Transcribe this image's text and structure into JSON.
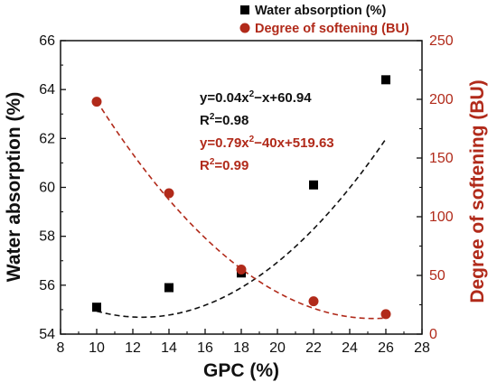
{
  "chart_data": {
    "type": "scatter",
    "x": [
      10,
      14,
      18,
      22,
      26
    ],
    "xlabel": "GPC (%)",
    "xlim": [
      8,
      28
    ],
    "xticks": [
      8,
      10,
      12,
      14,
      16,
      18,
      20,
      22,
      24,
      26,
      28
    ],
    "y_left": {
      "label": "Water absorption (%)",
      "lim": [
        54,
        66
      ],
      "ticks": [
        54,
        56,
        58,
        60,
        62,
        64,
        66
      ]
    },
    "y_right": {
      "label": "Degree of softening (BU)",
      "lim": [
        0,
        250
      ],
      "ticks": [
        0,
        50,
        100,
        150,
        200,
        250
      ]
    },
    "series": [
      {
        "name": "Water absorption (%)",
        "axis": "left",
        "marker": "square",
        "color": "#000000",
        "values": [
          55.1,
          55.9,
          56.5,
          60.1,
          64.4
        ],
        "fit": {
          "a": 0.04,
          "b": -1,
          "c": 60.94,
          "style": "dashed",
          "color": "#111111"
        }
      },
      {
        "name": "Degree of softening (BU)",
        "axis": "right",
        "marker": "circle",
        "color": "#b12a1a",
        "values": [
          198,
          120,
          55,
          28,
          17
        ],
        "fit": {
          "a": 0.79,
          "b": -40,
          "c": 519.63,
          "style": "dashed",
          "color": "#b12a1a"
        }
      }
    ],
    "annotations": {
      "eq1_main": "y=0.04x",
      "eq1_sup": "2",
      "eq1_rest": "−x+60.94",
      "r1_main": "R",
      "r1_sup": "2",
      "r1_rest": "=0.98",
      "eq2_main": "y=0.79x",
      "eq2_sup": "2",
      "eq2_rest": "−40x+519.63",
      "r2_main": "R",
      "r2_sup": "2",
      "r2_rest": "=0.99"
    },
    "legend_position": "top-right",
    "grid": false
  }
}
